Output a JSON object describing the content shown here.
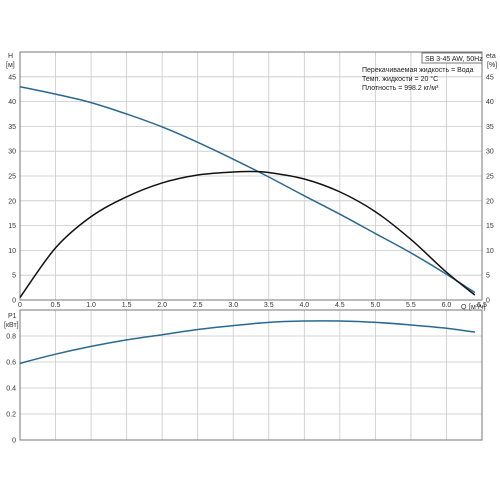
{
  "title_box": "SB 3-45 AW, 50Hz",
  "info_lines": [
    "Перекачиваемая жидкость = Вода",
    "Темп. жидкости = 20 °C",
    "Плотность = 998.2 кг/м³"
  ],
  "colors": {
    "head_curve": "#2a6890",
    "eta_curve": "#111111",
    "power_curve": "#2a6890",
    "grid": "#c8c8c8",
    "frame": "#777777"
  },
  "chart_data": [
    {
      "type": "line",
      "ylabel_top": "H",
      "ylabel_unit": "[м]",
      "y2label_top": "eta",
      "y2label_unit": "[%]",
      "xlabel": "Q",
      "xlabel_unit": "[м³/ч]",
      "xlim": [
        0,
        6.5
      ],
      "ylim": [
        0,
        50
      ],
      "x_ticks": [
        "0",
        "0.5",
        "1.0",
        "1.5",
        "2.0",
        "2.5",
        "3.0",
        "3.5",
        "4.0",
        "4.5",
        "5.0",
        "5.5",
        "6.0",
        "6.5"
      ],
      "y_ticks": [
        "0",
        "5",
        "10",
        "15",
        "20",
        "25",
        "30",
        "35",
        "40",
        "45"
      ],
      "y2_ticks": [
        "0",
        "5",
        "10",
        "15",
        "20",
        "25",
        "30",
        "35",
        "40",
        "45"
      ],
      "grid": true,
      "series": [
        {
          "key": "head",
          "x": [
            0,
            0.5,
            1.0,
            1.5,
            2.0,
            2.5,
            3.0,
            3.5,
            4.0,
            4.5,
            5.0,
            5.5,
            6.0,
            6.4
          ],
          "y": [
            43,
            41.5,
            39.8,
            37.5,
            34.9,
            31.8,
            28.4,
            24.8,
            21.0,
            17.3,
            13.4,
            9.5,
            5.2,
            1.5
          ]
        },
        {
          "key": "eta",
          "x": [
            0,
            0.5,
            1.0,
            1.5,
            2.0,
            2.5,
            3.0,
            3.25,
            3.5,
            4.0,
            4.5,
            5.0,
            5.5,
            6.0,
            6.4
          ],
          "y": [
            0.5,
            10.5,
            16.8,
            20.8,
            23.6,
            25.2,
            25.8,
            25.9,
            25.7,
            24.4,
            21.8,
            17.8,
            12.2,
            5.6,
            1.0
          ]
        }
      ]
    },
    {
      "type": "line",
      "ylabel_top": "P1",
      "ylabel_unit": "[кВт]",
      "xlim": [
        0,
        6.5
      ],
      "ylim": [
        0,
        1.0
      ],
      "y_ticks": [
        "0",
        "0.2",
        "0.4",
        "0.6",
        "0.8"
      ],
      "grid": true,
      "series": [
        {
          "key": "power",
          "x": [
            0,
            0.5,
            1.0,
            1.5,
            2.0,
            2.5,
            3.0,
            3.5,
            4.0,
            4.5,
            5.0,
            5.5,
            6.0,
            6.4
          ],
          "y": [
            0.59,
            0.66,
            0.72,
            0.77,
            0.81,
            0.85,
            0.88,
            0.905,
            0.915,
            0.915,
            0.905,
            0.885,
            0.86,
            0.83
          ]
        }
      ]
    }
  ]
}
